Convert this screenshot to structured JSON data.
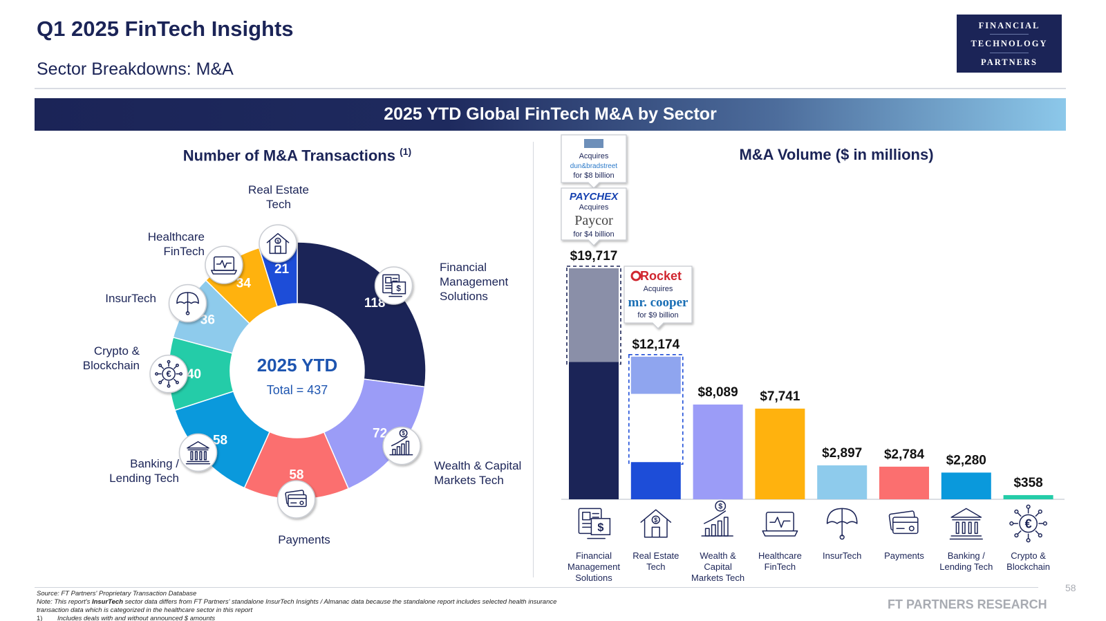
{
  "header": {
    "title": "Q1 2025 FinTech Insights",
    "subtitle": "Sector Breakdowns: M&A",
    "logo_lines": [
      "FINANCIAL",
      "TECHNOLOGY",
      "PARTNERS"
    ]
  },
  "banner": "2025 YTD Global FinTech M&A by Sector",
  "footer": {
    "source": "Source: FT Partners' Proprietary Transaction Database",
    "note_prefix": "Note: This report's ",
    "note_bold": "InsurTech",
    "note_rest": " sector data differs from FT Partners' standalone InsurTech Insights / Almanac data because the standalone report includes selected health insurance transaction data which is categorized in the healthcare sector in this report",
    "fn_marker": "1)",
    "fn_text": "Includes deals with and without announced $ amounts",
    "brand": "FT PARTNERS RESEARCH",
    "page": "58"
  },
  "chart_data": [
    {
      "type": "pie",
      "title": "Number of M&A Transactions",
      "title_sup": "(1)",
      "center_line1": "2025 YTD",
      "center_line2": "Total = 437",
      "slices": [
        {
          "label": "Financial Management Solutions",
          "value": 118,
          "color": "#1b2457",
          "icon": "financial-management-icon"
        },
        {
          "label": "Wealth & Capital Markets Tech",
          "value": 72,
          "color": "#9b9cf7",
          "icon": "wealth-chart-icon"
        },
        {
          "label": "Payments",
          "value": 58,
          "color": "#fb6f6f",
          "icon": "payment-card-icon"
        },
        {
          "label": "Banking / Lending Tech",
          "value": 58,
          "color": "#0a99dc",
          "icon": "bank-icon"
        },
        {
          "label": "Crypto & Blockchain",
          "value": 40,
          "color": "#24cca8",
          "icon": "crypto-coin-icon"
        },
        {
          "label": "InsurTech",
          "value": 36,
          "color": "#8ecbec",
          "icon": "umbrella-icon"
        },
        {
          "label": "Healthcare FinTech",
          "value": 34,
          "color": "#ffb20e",
          "icon": "healthcare-monitor-icon"
        },
        {
          "label": "Real Estate Tech",
          "value": 21,
          "color": "#1d4dd8",
          "icon": "house-dollar-icon"
        }
      ],
      "slice_labels": [
        {
          "lines": [
            "Financial",
            "Management",
            "Solutions"
          ]
        },
        {
          "lines": [
            "Wealth & Capital",
            "Markets Tech"
          ]
        },
        {
          "lines": [
            "Payments"
          ]
        },
        {
          "lines": [
            "Banking /",
            "Lending Tech"
          ]
        },
        {
          "lines": [
            "Crypto &",
            "Blockchain"
          ]
        },
        {
          "lines": [
            "InsurTech"
          ]
        },
        {
          "lines": [
            "Healthcare",
            "FinTech"
          ]
        },
        {
          "lines": [
            "Real Estate",
            "Tech"
          ]
        }
      ]
    },
    {
      "type": "bar",
      "title": "M&A Volume ($ in millions)",
      "ylim": [
        0,
        22000
      ],
      "bars": [
        {
          "category": "Financial Management Solutions",
          "label_lines": [
            "Financial",
            "Management",
            "Solutions"
          ],
          "value": 19717,
          "value_label": "$19,717",
          "highlight_value": 8000,
          "color": "#1b2457",
          "highlight_color": "#8a8fa8",
          "icon": "financial-management-icon"
        },
        {
          "category": "Real Estate Tech",
          "label_lines": [
            "Real Estate",
            "Tech"
          ],
          "value": 12174,
          "value_label": "$12,174",
          "highlight_value": 9000,
          "color": "#1d4dd8",
          "highlight_color": "#8fa5ef",
          "icon": "house-dollar-icon"
        },
        {
          "category": "Wealth & Capital Markets Tech",
          "label_lines": [
            "Wealth &",
            "Capital",
            "Markets Tech"
          ],
          "value": 8089,
          "value_label": "$8,089",
          "color": "#9b9cf7",
          "icon": "wealth-chart-icon"
        },
        {
          "category": "Healthcare FinTech",
          "label_lines": [
            "Healthcare",
            "FinTech"
          ],
          "value": 7741,
          "value_label": "$7,741",
          "color": "#ffb20e",
          "icon": "healthcare-monitor-icon"
        },
        {
          "category": "InsurTech",
          "label_lines": [
            "InsurTech"
          ],
          "value": 2897,
          "value_label": "$2,897",
          "color": "#8ecbec",
          "icon": "umbrella-icon"
        },
        {
          "category": "Payments",
          "label_lines": [
            "Payments"
          ],
          "value": 2784,
          "value_label": "$2,784",
          "color": "#fb6f6f",
          "icon": "payment-card-icon"
        },
        {
          "category": "Banking / Lending Tech",
          "label_lines": [
            "Banking /",
            "Lending Tech"
          ],
          "value": 2280,
          "value_label": "$2,280",
          "color": "#0a99dc",
          "icon": "bank-icon"
        },
        {
          "category": "Crypto & Blockchain",
          "label_lines": [
            "Crypto &",
            "Blockchain"
          ],
          "value": 358,
          "value_label": "$358",
          "color": "#24cca8",
          "icon": "crypto-coin-icon"
        }
      ],
      "callouts": [
        {
          "bar": 0,
          "acquirer": "",
          "verb": "Acquires",
          "target": "dun&bradstreet",
          "amount": "for $8 billion"
        },
        {
          "bar": 0,
          "acquirer": "PAYCHEX",
          "verb": "Acquires",
          "target": "Paycor",
          "amount": "for $4 billion"
        },
        {
          "bar": 1,
          "acquirer": "Rocket",
          "verb": "Acquires",
          "target": "mr. cooper",
          "amount": "for $9 billion"
        }
      ]
    }
  ]
}
